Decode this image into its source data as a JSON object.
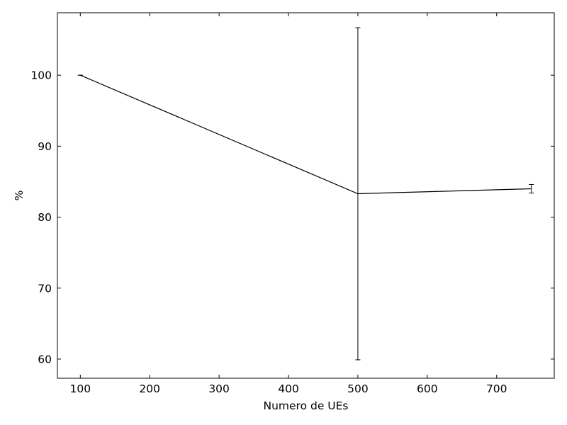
{
  "chart_data": {
    "type": "line",
    "title": "",
    "xlabel": "Numero de UEs",
    "ylabel": "%",
    "xlim": [
      67,
      783
    ],
    "ylim": [
      57.3,
      108.8
    ],
    "xticks": [
      100,
      200,
      300,
      400,
      500,
      600,
      700
    ],
    "yticks": [
      60,
      70,
      80,
      90,
      100
    ],
    "grid": false,
    "legend": "none",
    "series": [
      {
        "color": "#000000",
        "x": [
          100,
          500,
          750
        ],
        "y": [
          100.0,
          83.3,
          84.0
        ],
        "yerr": [
          0.0,
          23.4,
          0.6
        ]
      }
    ]
  }
}
